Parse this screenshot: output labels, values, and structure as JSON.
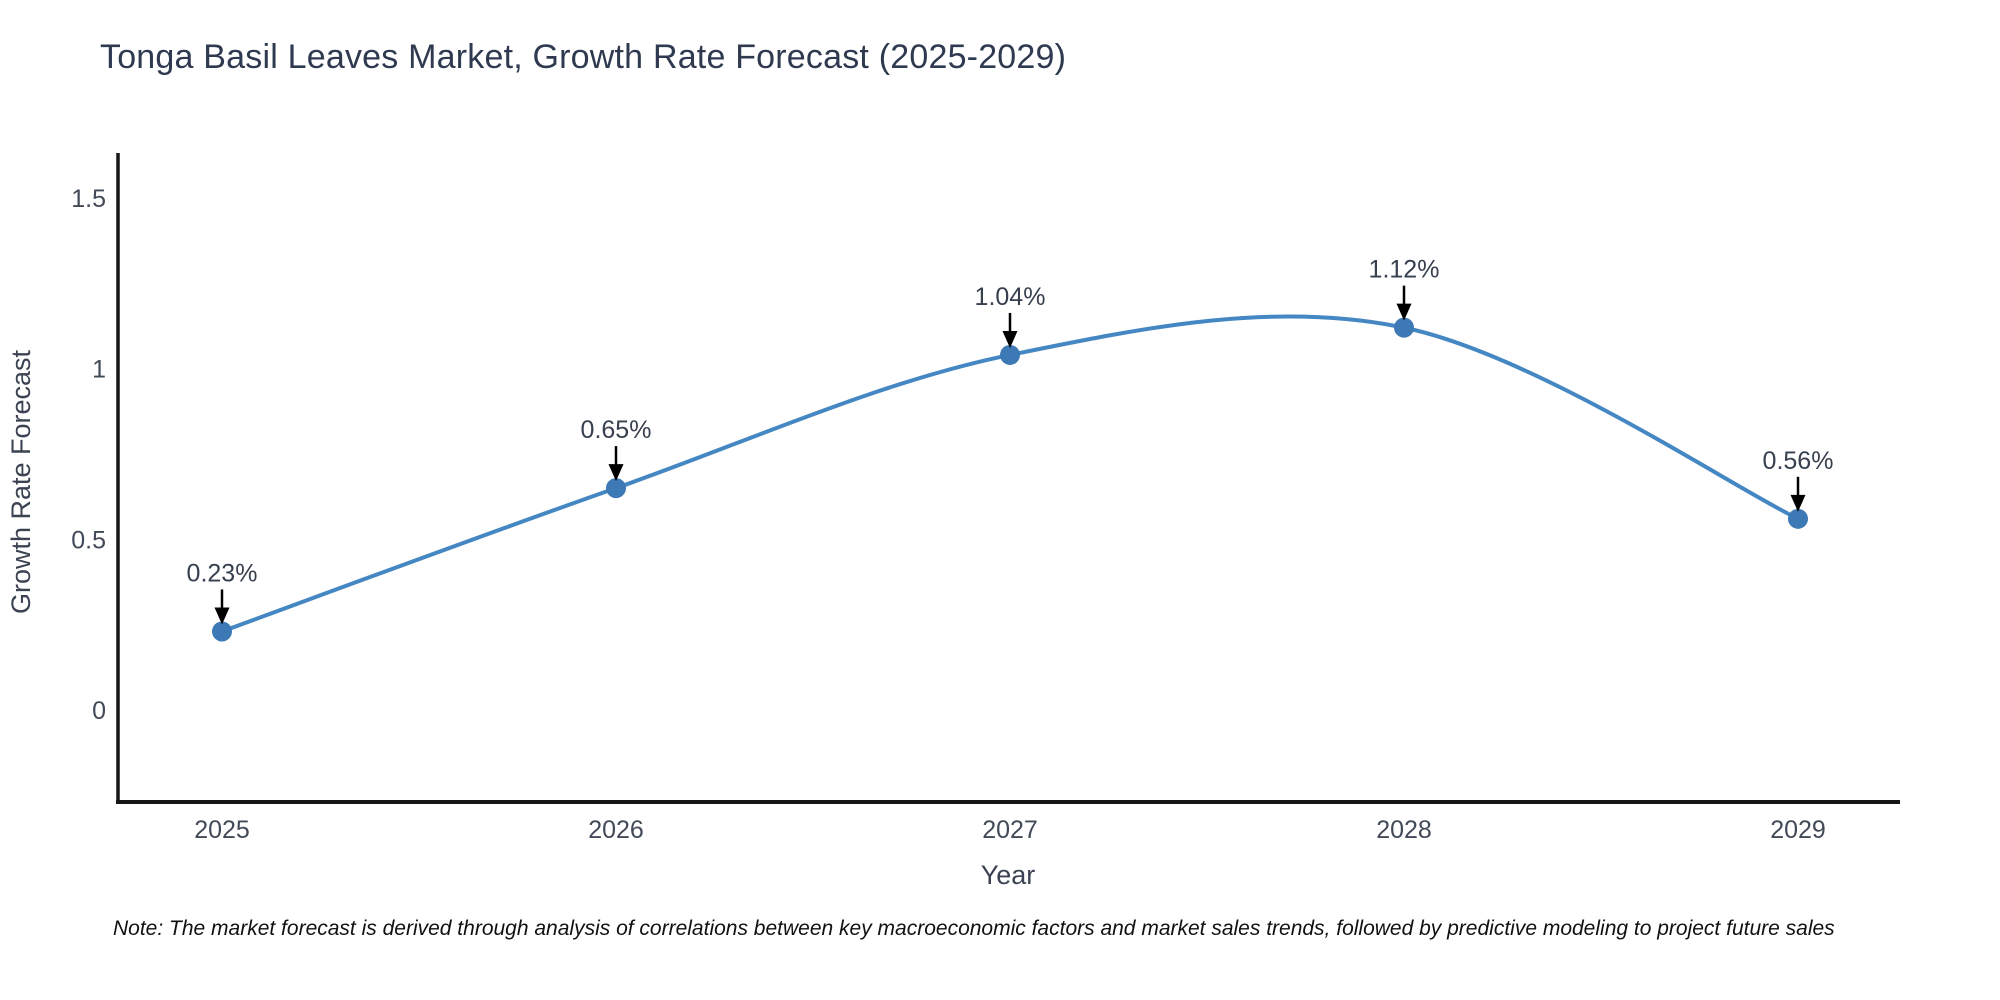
{
  "note": "Note: The market forecast is derived through analysis of correlations between key macroeconomic factors and market sales trends, followed by predictive modeling to project future sales",
  "chart_data": {
    "type": "line",
    "title": "Tonga Basil Leaves Market, Growth Rate Forecast (2025-2029)",
    "xlabel": "Year",
    "ylabel": "Growth Rate Forecast",
    "categories": [
      "2025",
      "2026",
      "2027",
      "2028",
      "2029"
    ],
    "values": [
      0.23,
      0.65,
      1.04,
      1.12,
      0.56
    ],
    "point_labels": [
      "0.23%",
      "0.65%",
      "1.04%",
      "1.12%",
      "0.56%"
    ],
    "yticks": [
      0,
      0.5,
      1,
      1.5
    ],
    "ytick_labels": [
      "0",
      "0.5",
      "1",
      "1.5"
    ],
    "ylim": [
      -0.27,
      1.62
    ],
    "line_shape": "spline",
    "grid": false,
    "legend": "none",
    "colors": {
      "line": "#4487c2",
      "marker": "#3d79b4",
      "axis": "#161616",
      "arrow": "#000000",
      "title": "#2f3a50",
      "tick": "#424a58",
      "axis_title": "#3b4252",
      "annotation": "#37404e",
      "note": "#111111"
    }
  }
}
